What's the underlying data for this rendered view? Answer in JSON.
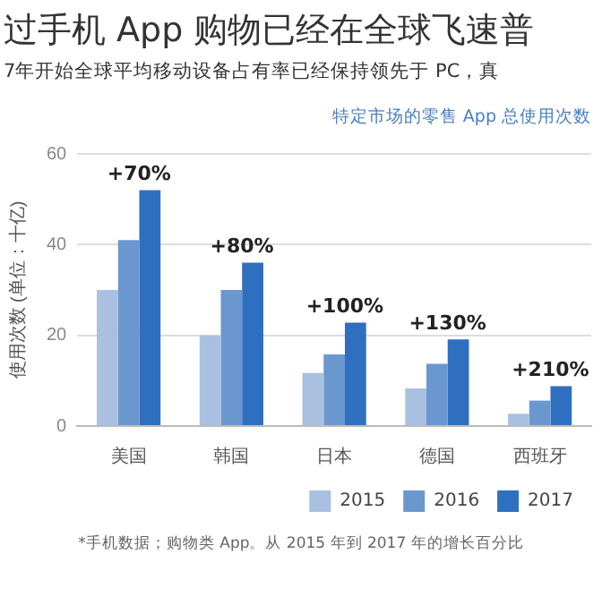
{
  "chart_data": {
    "type": "bar",
    "title": "过手机 App 购物已经在全球飞速普",
    "subtitle": "7年开始全球平均移动设备占有率已经保持领先于 PC，真",
    "legend_title": "特定市场的零售 App 总使用次数",
    "ylabel": "使用次数 (单位：十亿)",
    "categories": [
      "美国",
      "韩国",
      "日本",
      "德国",
      "西班牙"
    ],
    "series": [
      {
        "name": "2015",
        "color": "#a9c0e0",
        "values": [
          30,
          20,
          11.7,
          8.3,
          2.7
        ]
      },
      {
        "name": "2016",
        "color": "#6b97cf",
        "values": [
          41,
          30,
          15.8,
          13.7,
          5.6
        ]
      },
      {
        "name": "2017",
        "color": "#2f6fc0",
        "values": [
          52,
          36,
          22.8,
          19.1,
          8.8
        ]
      }
    ],
    "ylim": [
      0,
      60
    ],
    "yticks": [
      0,
      20,
      40,
      60
    ],
    "grid": "y",
    "legend": "bottom right",
    "annotations": [
      "+70%",
      "+80%",
      "+100%",
      "+130%",
      "+210%",
      "*手机数据；购物类 App。从 2015 年到 2017 年的增长百分比"
    ]
  }
}
